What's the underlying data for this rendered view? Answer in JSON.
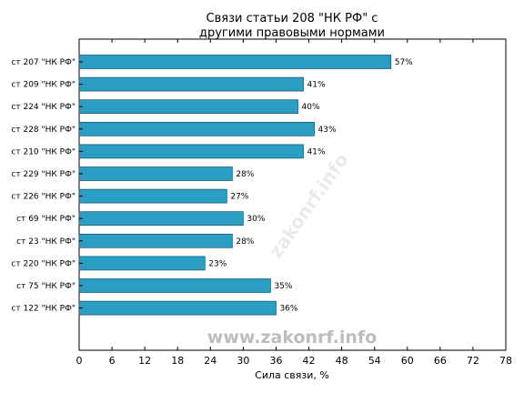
{
  "chart_data": {
    "type": "bar",
    "orientation": "horizontal",
    "title_lines": [
      "Связи статьи 208 \"НК РФ\" с",
      "другими правовыми нормами"
    ],
    "xlabel": "Сила связи, %",
    "ylabel": "",
    "xlim": [
      0,
      78
    ],
    "xticks": [
      0,
      6,
      12,
      18,
      24,
      30,
      36,
      42,
      48,
      54,
      60,
      66,
      72,
      78
    ],
    "categories": [
      "ст 207 \"НК РФ\"",
      "ст 209 \"НК РФ\"",
      "ст 224 \"НК РФ\"",
      "ст 228 \"НК РФ\"",
      "ст 210 \"НК РФ\"",
      "ст 229 \"НК РФ\"",
      "ст 226 \"НК РФ\"",
      "ст 69 \"НК РФ\"",
      "ст 23 \"НК РФ\"",
      "ст 220 \"НК РФ\"",
      "ст 75 \"НК РФ\"",
      "ст 122 \"НК РФ\""
    ],
    "values": [
      57,
      41,
      40,
      43,
      41,
      28,
      27,
      30,
      28,
      23,
      35,
      36
    ],
    "value_labels": [
      "57%",
      "41%",
      "40%",
      "43%",
      "41%",
      "28%",
      "27%",
      "30%",
      "28%",
      "23%",
      "35%",
      "36%"
    ],
    "bar_color": "#2b9ec4",
    "grid": false,
    "legend": "none"
  },
  "watermark": "www.zakonrf.info",
  "diagonal_watermark": "zakonrf.info"
}
